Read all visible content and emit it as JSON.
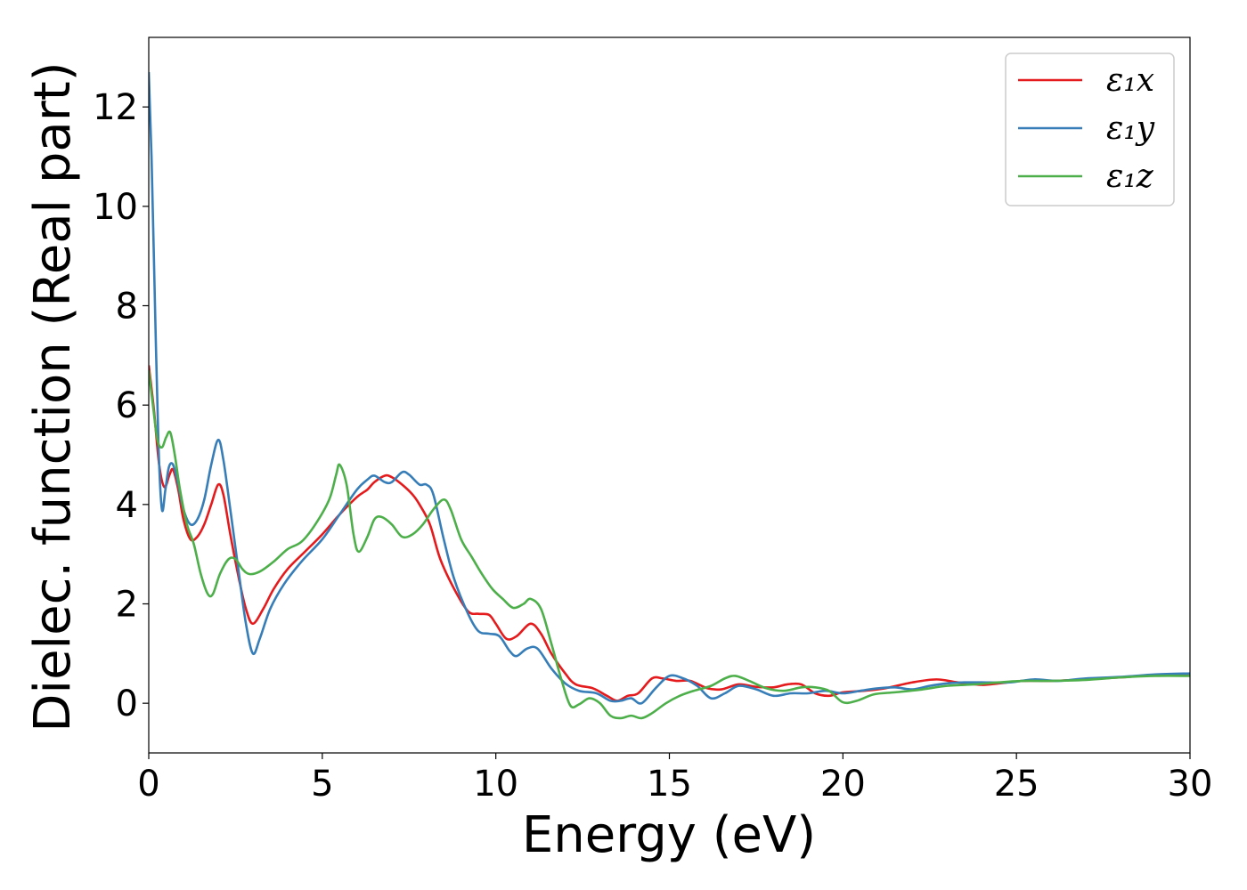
{
  "chart_data": {
    "type": "line",
    "xlabel": "Energy (eV)",
    "ylabel": "Dielec. function (Real part)",
    "xlim": [
      0,
      30
    ],
    "ylim": [
      -1,
      13.4
    ],
    "xticks": [
      0,
      5,
      10,
      15,
      20,
      25,
      30
    ],
    "yticks": [
      0,
      2,
      4,
      6,
      8,
      10,
      12
    ],
    "grid": false,
    "legend_position": "top-right",
    "series": [
      {
        "name": "ε₁x",
        "color": "#e41a1c",
        "points": [
          [
            0,
            6.8
          ],
          [
            0.15,
            5.9
          ],
          [
            0.3,
            4.8
          ],
          [
            0.45,
            4.35
          ],
          [
            0.6,
            4.6
          ],
          [
            0.7,
            4.7
          ],
          [
            0.85,
            4.3
          ],
          [
            1.0,
            3.7
          ],
          [
            1.2,
            3.3
          ],
          [
            1.4,
            3.35
          ],
          [
            1.6,
            3.6
          ],
          [
            1.8,
            4.0
          ],
          [
            2.0,
            4.4
          ],
          [
            2.15,
            4.2
          ],
          [
            2.35,
            3.4
          ],
          [
            2.6,
            2.5
          ],
          [
            2.8,
            1.9
          ],
          [
            3.0,
            1.6
          ],
          [
            3.3,
            1.9
          ],
          [
            3.6,
            2.3
          ],
          [
            4.0,
            2.7
          ],
          [
            4.5,
            3.05
          ],
          [
            5.0,
            3.4
          ],
          [
            5.5,
            3.8
          ],
          [
            6.0,
            4.15
          ],
          [
            6.3,
            4.3
          ],
          [
            6.5,
            4.45
          ],
          [
            6.8,
            4.58
          ],
          [
            7.0,
            4.55
          ],
          [
            7.3,
            4.4
          ],
          [
            7.6,
            4.2
          ],
          [
            7.8,
            4.0
          ],
          [
            8.1,
            3.6
          ],
          [
            8.4,
            2.9
          ],
          [
            8.8,
            2.3
          ],
          [
            9.2,
            1.85
          ],
          [
            9.5,
            1.8
          ],
          [
            9.8,
            1.78
          ],
          [
            10.0,
            1.6
          ],
          [
            10.3,
            1.3
          ],
          [
            10.6,
            1.35
          ],
          [
            11.0,
            1.6
          ],
          [
            11.3,
            1.4
          ],
          [
            11.6,
            1.0
          ],
          [
            12.0,
            0.6
          ],
          [
            12.3,
            0.38
          ],
          [
            12.8,
            0.3
          ],
          [
            13.2,
            0.15
          ],
          [
            13.5,
            0.05
          ],
          [
            13.8,
            0.15
          ],
          [
            14.1,
            0.2
          ],
          [
            14.5,
            0.5
          ],
          [
            14.8,
            0.5
          ],
          [
            15.2,
            0.45
          ],
          [
            15.6,
            0.45
          ],
          [
            16.1,
            0.3
          ],
          [
            16.5,
            0.28
          ],
          [
            17.0,
            0.38
          ],
          [
            17.5,
            0.33
          ],
          [
            18.0,
            0.32
          ],
          [
            18.4,
            0.38
          ],
          [
            18.8,
            0.38
          ],
          [
            19.2,
            0.2
          ],
          [
            19.6,
            0.15
          ],
          [
            20.0,
            0.22
          ],
          [
            20.6,
            0.25
          ],
          [
            21.2,
            0.3
          ],
          [
            22.0,
            0.42
          ],
          [
            22.7,
            0.48
          ],
          [
            23.3,
            0.42
          ],
          [
            24.0,
            0.37
          ],
          [
            24.5,
            0.4
          ],
          [
            25.2,
            0.45
          ],
          [
            26.0,
            0.45
          ],
          [
            27.0,
            0.48
          ],
          [
            28.0,
            0.52
          ],
          [
            29.0,
            0.57
          ],
          [
            30.0,
            0.58
          ]
        ]
      },
      {
        "name": "ε₁y",
        "color": "#377eb8",
        "points": [
          [
            0,
            12.7
          ],
          [
            0.08,
            11.0
          ],
          [
            0.18,
            8.0
          ],
          [
            0.28,
            5.2
          ],
          [
            0.38,
            3.9
          ],
          [
            0.48,
            4.3
          ],
          [
            0.58,
            4.75
          ],
          [
            0.7,
            4.8
          ],
          [
            0.85,
            4.4
          ],
          [
            1.0,
            3.9
          ],
          [
            1.2,
            3.6
          ],
          [
            1.4,
            3.7
          ],
          [
            1.6,
            4.1
          ],
          [
            1.8,
            4.8
          ],
          [
            2.0,
            5.3
          ],
          [
            2.15,
            4.9
          ],
          [
            2.35,
            3.9
          ],
          [
            2.6,
            2.6
          ],
          [
            2.8,
            1.6
          ],
          [
            3.0,
            1.0
          ],
          [
            3.2,
            1.3
          ],
          [
            3.5,
            1.9
          ],
          [
            3.9,
            2.4
          ],
          [
            4.4,
            2.85
          ],
          [
            5.0,
            3.3
          ],
          [
            5.5,
            3.8
          ],
          [
            6.0,
            4.3
          ],
          [
            6.3,
            4.5
          ],
          [
            6.5,
            4.58
          ],
          [
            6.8,
            4.45
          ],
          [
            7.0,
            4.45
          ],
          [
            7.3,
            4.65
          ],
          [
            7.5,
            4.6
          ],
          [
            7.8,
            4.4
          ],
          [
            8.0,
            4.4
          ],
          [
            8.2,
            4.2
          ],
          [
            8.5,
            3.3
          ],
          [
            8.8,
            2.5
          ],
          [
            9.2,
            1.8
          ],
          [
            9.5,
            1.45
          ],
          [
            9.8,
            1.4
          ],
          [
            10.1,
            1.35
          ],
          [
            10.4,
            1.05
          ],
          [
            10.6,
            0.95
          ],
          [
            10.9,
            1.1
          ],
          [
            11.2,
            1.1
          ],
          [
            11.6,
            0.7
          ],
          [
            12.0,
            0.4
          ],
          [
            12.4,
            0.25
          ],
          [
            12.9,
            0.2
          ],
          [
            13.3,
            0.05
          ],
          [
            13.6,
            0.05
          ],
          [
            13.9,
            0.1
          ],
          [
            14.2,
            0.0
          ],
          [
            14.6,
            0.3
          ],
          [
            15.0,
            0.55
          ],
          [
            15.4,
            0.5
          ],
          [
            15.8,
            0.35
          ],
          [
            16.2,
            0.1
          ],
          [
            16.6,
            0.2
          ],
          [
            17.0,
            0.35
          ],
          [
            17.5,
            0.28
          ],
          [
            18.0,
            0.15
          ],
          [
            18.5,
            0.2
          ],
          [
            19.0,
            0.2
          ],
          [
            19.5,
            0.25
          ],
          [
            20.0,
            0.2
          ],
          [
            20.5,
            0.25
          ],
          [
            21.0,
            0.3
          ],
          [
            21.5,
            0.32
          ],
          [
            22.0,
            0.28
          ],
          [
            22.5,
            0.35
          ],
          [
            23.0,
            0.4
          ],
          [
            23.5,
            0.42
          ],
          [
            24.0,
            0.42
          ],
          [
            24.8,
            0.42
          ],
          [
            25.5,
            0.48
          ],
          [
            26.2,
            0.45
          ],
          [
            27.0,
            0.5
          ],
          [
            28.0,
            0.53
          ],
          [
            29.0,
            0.58
          ],
          [
            30.0,
            0.6
          ]
        ]
      },
      {
        "name": "ε₁z",
        "color": "#4daf4a",
        "points": [
          [
            0,
            6.7
          ],
          [
            0.12,
            6.0
          ],
          [
            0.25,
            5.3
          ],
          [
            0.38,
            5.15
          ],
          [
            0.5,
            5.35
          ],
          [
            0.62,
            5.45
          ],
          [
            0.75,
            5.0
          ],
          [
            0.9,
            4.3
          ],
          [
            1.1,
            3.6
          ],
          [
            1.3,
            3.2
          ],
          [
            1.5,
            2.6
          ],
          [
            1.7,
            2.2
          ],
          [
            1.85,
            2.2
          ],
          [
            2.05,
            2.6
          ],
          [
            2.3,
            2.9
          ],
          [
            2.5,
            2.9
          ],
          [
            2.7,
            2.7
          ],
          [
            2.9,
            2.6
          ],
          [
            3.2,
            2.65
          ],
          [
            3.6,
            2.85
          ],
          [
            4.0,
            3.1
          ],
          [
            4.4,
            3.25
          ],
          [
            4.8,
            3.6
          ],
          [
            5.2,
            4.1
          ],
          [
            5.4,
            4.6
          ],
          [
            5.5,
            4.8
          ],
          [
            5.7,
            4.4
          ],
          [
            5.9,
            3.4
          ],
          [
            6.05,
            3.05
          ],
          [
            6.3,
            3.35
          ],
          [
            6.5,
            3.7
          ],
          [
            6.7,
            3.75
          ],
          [
            7.0,
            3.6
          ],
          [
            7.3,
            3.35
          ],
          [
            7.6,
            3.4
          ],
          [
            7.9,
            3.6
          ],
          [
            8.2,
            3.9
          ],
          [
            8.5,
            4.1
          ],
          [
            8.7,
            3.9
          ],
          [
            9.0,
            3.3
          ],
          [
            9.3,
            2.95
          ],
          [
            9.6,
            2.6
          ],
          [
            9.9,
            2.3
          ],
          [
            10.2,
            2.1
          ],
          [
            10.5,
            1.92
          ],
          [
            10.8,
            2.0
          ],
          [
            11.0,
            2.1
          ],
          [
            11.3,
            1.9
          ],
          [
            11.6,
            1.2
          ],
          [
            11.9,
            0.45
          ],
          [
            12.15,
            -0.05
          ],
          [
            12.4,
            -0.02
          ],
          [
            12.7,
            0.1
          ],
          [
            13.0,
            0.0
          ],
          [
            13.3,
            -0.25
          ],
          [
            13.6,
            -0.3
          ],
          [
            13.9,
            -0.25
          ],
          [
            14.2,
            -0.3
          ],
          [
            14.5,
            -0.2
          ],
          [
            14.9,
            0.0
          ],
          [
            15.3,
            0.15
          ],
          [
            15.7,
            0.25
          ],
          [
            16.2,
            0.35
          ],
          [
            16.6,
            0.5
          ],
          [
            16.9,
            0.55
          ],
          [
            17.3,
            0.45
          ],
          [
            17.8,
            0.3
          ],
          [
            18.3,
            0.25
          ],
          [
            18.8,
            0.32
          ],
          [
            19.2,
            0.32
          ],
          [
            19.6,
            0.25
          ],
          [
            20.0,
            0.02
          ],
          [
            20.4,
            0.05
          ],
          [
            20.9,
            0.18
          ],
          [
            21.5,
            0.22
          ],
          [
            22.2,
            0.27
          ],
          [
            23.0,
            0.35
          ],
          [
            23.8,
            0.38
          ],
          [
            24.5,
            0.42
          ],
          [
            25.2,
            0.45
          ],
          [
            26.0,
            0.45
          ],
          [
            27.0,
            0.47
          ],
          [
            28.0,
            0.52
          ],
          [
            29.0,
            0.55
          ],
          [
            30.0,
            0.55
          ]
        ]
      }
    ]
  }
}
